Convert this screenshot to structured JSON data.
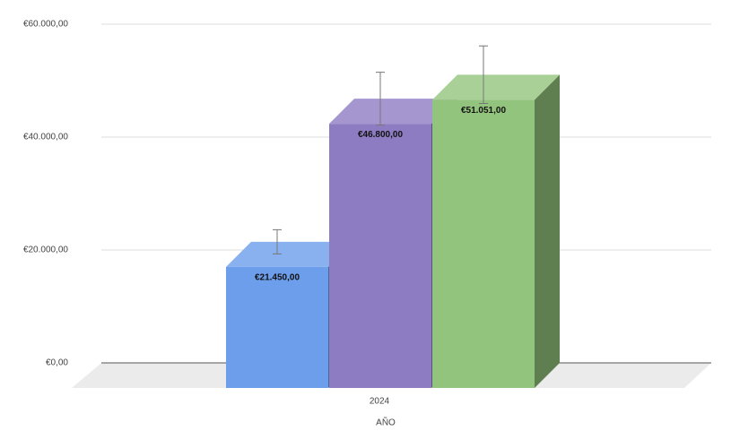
{
  "chart_data": {
    "type": "bar3d",
    "x_label": "AÑO",
    "categories": [
      "2024"
    ],
    "series": [
      {
        "color": "#6d9eeb",
        "values": [
          21450
        ],
        "value_labels": [
          "€21.450,00"
        ],
        "errors": [
          2145
        ]
      },
      {
        "color": "#8e7cc3",
        "values": [
          46800
        ],
        "value_labels": [
          "€46.800,00"
        ],
        "errors": [
          4680
        ]
      },
      {
        "color": "#93c47d",
        "values": [
          51051
        ],
        "value_labels": [
          "€51.051,00"
        ],
        "errors": [
          5105.1
        ]
      }
    ],
    "ylim": [
      0,
      60000
    ],
    "yticks": [
      {
        "value": 0,
        "label": "€0,00"
      },
      {
        "value": 20000,
        "label": "€20.000,00"
      },
      {
        "value": 40000,
        "label": "€40.000,00"
      },
      {
        "value": 60000,
        "label": "€60.000,00"
      }
    ],
    "grid": true
  }
}
